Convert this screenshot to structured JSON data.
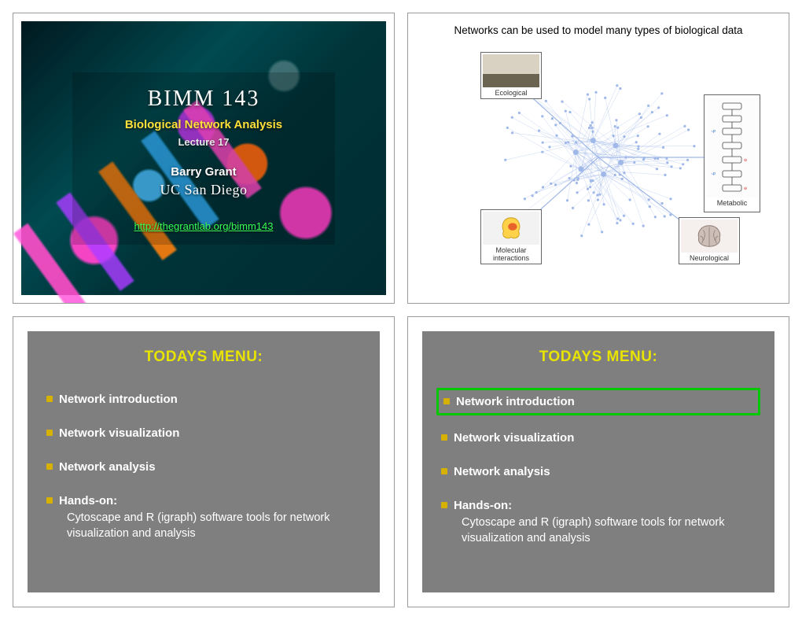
{
  "slide1": {
    "title": "BIMM 143",
    "subtitle": "Biological Network Analysis",
    "subtitle_color": "#ffe13a",
    "lecture": "Lecture 17",
    "author": "Barry Grant",
    "org": "UC San Diego",
    "link": "http://thegrantlab.org/bimm143",
    "link_color": "#37ff55"
  },
  "slide2": {
    "heading": "Networks can be used to model many types of biological data",
    "nodes": {
      "ecological": {
        "label": "Ecological"
      },
      "metabolic": {
        "label": "Metabolic"
      },
      "molecular": {
        "label": "Molecular interactions"
      },
      "neurological": {
        "label": "Neurological"
      }
    },
    "network_style": {
      "node_color": "#9fb8e8",
      "edge_color": "#9fb8e8",
      "hub_count": 6,
      "spoke_count": 120
    }
  },
  "menu": {
    "title": "TODAYS MENU:",
    "title_color": "#e8e400",
    "bg_color": "#7f7f7f",
    "bullet_color": "#d6b100",
    "items": [
      {
        "lead": "Network introduction",
        "detail": ""
      },
      {
        "lead": "Network visualization",
        "detail": ""
      },
      {
        "lead": "Network analysis",
        "detail": ""
      },
      {
        "lead": "Hands-on:",
        "detail": "Cytoscape and R (igraph) software tools for network visualization and analysis"
      }
    ]
  },
  "slide4": {
    "highlight_index": 0,
    "highlight_color": "#00c800"
  }
}
